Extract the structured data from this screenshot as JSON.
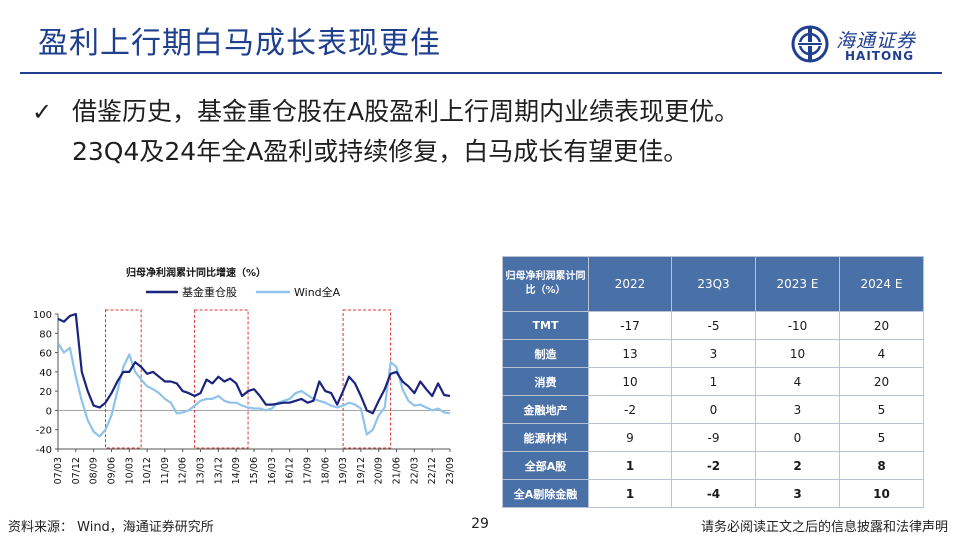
{
  "header": {
    "title": "盈利上行期白马成长表现更佳",
    "logo_cn": "海通证券",
    "logo_en": "HAITONG"
  },
  "bullet": {
    "line1": "借鉴历史，基金重仓股在A股盈利上行周期内业绩表现更优。",
    "line2": "23Q4及24年全A盈利或持续修复，白马成长有望更佳。"
  },
  "chart_data": {
    "type": "line",
    "title": "归母净利润累计同比增速（%）",
    "legend_position": "top",
    "ylim": [
      -40,
      100
    ],
    "yticks": [
      100,
      80,
      60,
      40,
      20,
      0,
      -20,
      -40
    ],
    "xticks": [
      "07/03",
      "07/12",
      "08/09",
      "09/06",
      "10/03",
      "10/12",
      "11/09",
      "12/06",
      "13/03",
      "13/12",
      "14/09",
      "15/06",
      "16/03",
      "16/12",
      "17/09",
      "18/06",
      "19/03",
      "19/12",
      "20/09",
      "21/06",
      "22/03",
      "22/12",
      "23/09"
    ],
    "series": [
      {
        "name": "基金重仓股",
        "color": "#1a237e",
        "x": [
          "07/03",
          "07/06",
          "07/09",
          "07/12",
          "08/03",
          "08/06",
          "08/09",
          "08/12",
          "09/03",
          "09/06",
          "09/09",
          "09/12",
          "10/03",
          "10/06",
          "10/09",
          "10/12",
          "11/03",
          "11/06",
          "11/09",
          "11/12",
          "12/03",
          "12/06",
          "12/09",
          "12/12",
          "13/03",
          "13/06",
          "13/09",
          "13/12",
          "14/03",
          "14/06",
          "14/09",
          "14/12",
          "15/03",
          "15/06",
          "15/09",
          "15/12",
          "16/03",
          "16/06",
          "16/09",
          "16/12",
          "17/03",
          "17/06",
          "17/09",
          "17/12",
          "18/03",
          "18/06",
          "18/09",
          "18/12",
          "19/03",
          "19/06",
          "19/09",
          "19/12",
          "20/03",
          "20/06",
          "20/09",
          "20/12",
          "21/03",
          "21/06",
          "21/09",
          "21/12",
          "22/03",
          "22/06",
          "22/09",
          "22/12",
          "23/03",
          "23/06",
          "23/09"
        ],
        "values": [
          95,
          92,
          98,
          100,
          40,
          20,
          5,
          3,
          8,
          18,
          30,
          40,
          40,
          50,
          45,
          38,
          40,
          35,
          30,
          30,
          28,
          20,
          18,
          15,
          18,
          32,
          28,
          35,
          30,
          33,
          28,
          15,
          20,
          22,
          15,
          6,
          6,
          7,
          8,
          8,
          10,
          12,
          8,
          10,
          30,
          20,
          18,
          6,
          20,
          35,
          28,
          15,
          0,
          -3,
          10,
          22,
          38,
          40,
          30,
          25,
          18,
          30,
          22,
          15,
          28,
          16,
          15
        ]
      },
      {
        "name": "Wind全A",
        "color": "#8fc3ea",
        "x": [
          "07/03",
          "07/06",
          "07/09",
          "07/12",
          "08/03",
          "08/06",
          "08/09",
          "08/12",
          "09/03",
          "09/06",
          "09/09",
          "09/12",
          "10/03",
          "10/06",
          "10/09",
          "10/12",
          "11/03",
          "11/06",
          "11/09",
          "11/12",
          "12/03",
          "12/06",
          "12/09",
          "12/12",
          "13/03",
          "13/06",
          "13/09",
          "13/12",
          "14/03",
          "14/06",
          "14/09",
          "14/12",
          "15/03",
          "15/06",
          "15/09",
          "15/12",
          "16/03",
          "16/06",
          "16/09",
          "16/12",
          "17/03",
          "17/06",
          "17/09",
          "17/12",
          "18/03",
          "18/06",
          "18/09",
          "18/12",
          "19/03",
          "19/06",
          "19/09",
          "19/12",
          "20/03",
          "20/06",
          "20/09",
          "20/12",
          "21/03",
          "21/06",
          "21/09",
          "21/12",
          "22/03",
          "22/06",
          "22/09",
          "22/12",
          "23/03",
          "23/06",
          "23/09"
        ],
        "values": [
          70,
          60,
          65,
          35,
          10,
          -10,
          -22,
          -27,
          -20,
          -5,
          20,
          45,
          58,
          40,
          32,
          25,
          22,
          18,
          12,
          8,
          -3,
          -2,
          0,
          5,
          10,
          12,
          12,
          15,
          10,
          8,
          8,
          5,
          3,
          2,
          2,
          0,
          2,
          8,
          10,
          12,
          18,
          20,
          16,
          12,
          10,
          8,
          5,
          3,
          5,
          8,
          6,
          2,
          -25,
          -20,
          -5,
          3,
          50,
          45,
          22,
          10,
          5,
          6,
          3,
          0,
          2,
          -2,
          -3
        ]
      }
    ],
    "shaded_periods": [
      {
        "start": "09/03",
        "end": "10/09"
      },
      {
        "start": "12/12",
        "end": "15/03"
      },
      {
        "start": "19/03",
        "end": "21/03"
      }
    ]
  },
  "table": {
    "header": [
      "归母净利润累计同比（%）",
      "2022",
      "23Q3",
      "2023 E",
      "2024 E"
    ],
    "rows": [
      {
        "label": "TMT",
        "values": [
          "-17",
          "-5",
          "-10",
          "20"
        ],
        "bold": false
      },
      {
        "label": "制造",
        "values": [
          "13",
          "3",
          "10",
          "4"
        ],
        "bold": false
      },
      {
        "label": "消费",
        "values": [
          "10",
          "1",
          "4",
          "20"
        ],
        "bold": false
      },
      {
        "label": "金融地产",
        "values": [
          "-2",
          "0",
          "3",
          "5"
        ],
        "bold": false
      },
      {
        "label": "能源材料",
        "values": [
          "9",
          "-9",
          "0",
          "5"
        ],
        "bold": false
      },
      {
        "label": "全部A股",
        "values": [
          "1",
          "-2",
          "2",
          "8"
        ],
        "bold": true
      },
      {
        "label": "全A剔除金融",
        "values": [
          "1",
          "-4",
          "3",
          "10"
        ],
        "bold": true
      }
    ]
  },
  "footer": {
    "source": "资料来源： Wind，海通证券研究所",
    "page": "29",
    "disclaimer": "请务必阅读正文之后的信息披露和法律声明"
  }
}
